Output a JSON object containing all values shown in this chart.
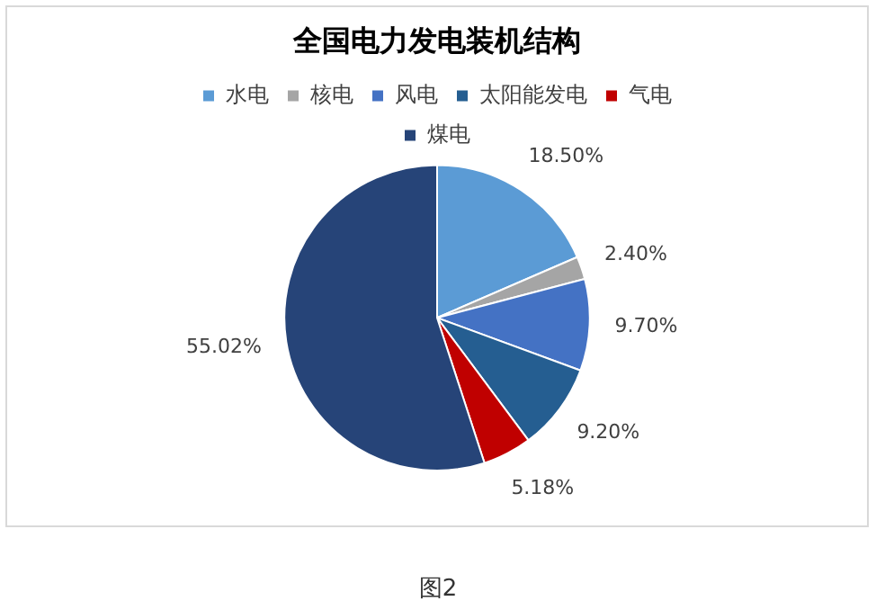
{
  "chart_data": {
    "type": "pie",
    "title": "全国电力发电装机结构",
    "categories": [
      "水电",
      "核电",
      "风电",
      "太阳能发电",
      "气电",
      "煤电"
    ],
    "values": [
      18.5,
      2.4,
      9.7,
      9.2,
      5.18,
      55.02
    ],
    "value_labels": [
      "18.50%",
      "2.40%",
      "9.70%",
      "9.20%",
      "5.18%",
      "55.02%"
    ],
    "colors": [
      "#5b9bd5",
      "#a5a5a5",
      "#4472c4",
      "#255e91",
      "#c00000",
      "#264478"
    ],
    "legend": "top",
    "annotations": [
      "图2"
    ]
  }
}
